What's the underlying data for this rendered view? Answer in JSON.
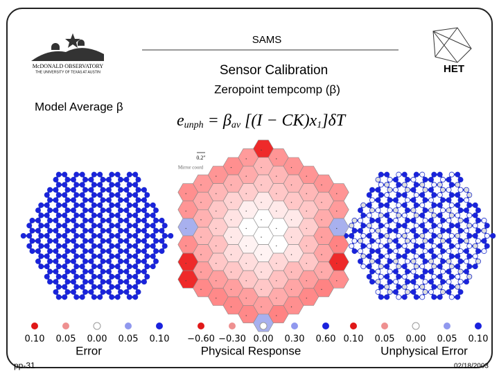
{
  "header": {
    "title": "SAMS",
    "subtitle": "Sensor Calibration",
    "logo_left": [
      "McDONALD OBSERVATORY",
      "THE UNIVERSITY OF TEXAS AT AUSTIN"
    ],
    "logo_right": "HET"
  },
  "section": "Zeropoint tempcomp (β)",
  "left_heading": "Model Average β",
  "equation": [
    "e",
    "unph",
    " = β",
    "av",
    " [(I − CK)x",
    "1",
    "]δT"
  ],
  "scale_label": "0.2″",
  "coord_label": "Mirror coord",
  "panels": [
    {
      "caption": "Error",
      "legend": [
        "0.10",
        "0.05",
        "0.00",
        "0.05",
        "0.10"
      ]
    },
    {
      "caption": "Physical Response",
      "legend": [
        "−0.60",
        "−0.30",
        "0.00",
        "0.30",
        "0.60"
      ]
    },
    {
      "caption": "Unphysical Error",
      "legend": [
        "0.10",
        "0.05",
        "0.00",
        "0.05",
        "0.10"
      ]
    }
  ],
  "footer": {
    "page": "pp-31",
    "date": "02/18/2003"
  }
}
